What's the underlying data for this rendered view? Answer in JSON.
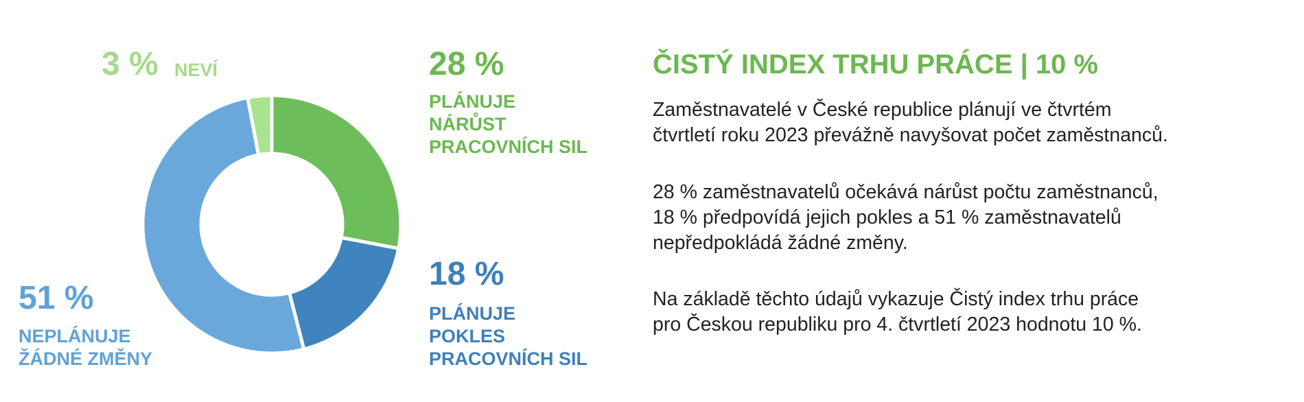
{
  "chart_data": {
    "type": "donut",
    "categories": [
      "PLÁNUJE\nNÁRŮST\nPRACOVNÍCH SIL",
      "PLÁNUJE\nPOKLES\nPRACOVNÍCH SIL",
      "NEPLÁNUJE\nŽÁDNÉ ZMĚNY",
      "NEVÍ"
    ],
    "values": [
      28,
      18,
      51,
      3
    ],
    "value_labels": [
      "28 %",
      "18 %",
      "51 %",
      "3 %"
    ],
    "colors": [
      "#6dbd5a",
      "#3f84bd",
      "#6aa8db",
      "#a8e38f"
    ],
    "label_colors": [
      "#6cb850",
      "#3e80b9",
      "#5fa2d6",
      "#a6d98c"
    ]
  },
  "panel": {
    "heading": "ČISTÝ INDEX TRHU PRÁCE | 10 %",
    "paragraphs": [
      "Zaměstnavatelé v České republice plánují ve čtvrtém\nčtvrtletí roku 2023 převážně navyšovat počet zaměstnanců.",
      "28 % zaměstnavatelů očekává nárůst počtu zaměstnanců,\n18 % předpovídá jejich pokles a 51 % zaměstnavatelů\nnepředpokládá žádné změny.",
      "Na základě těchto údajů vykazuje Čistý index trhu práce\npro Českou republiku pro 4. čtvrtletí 2023 hodnotu 10 %."
    ]
  }
}
